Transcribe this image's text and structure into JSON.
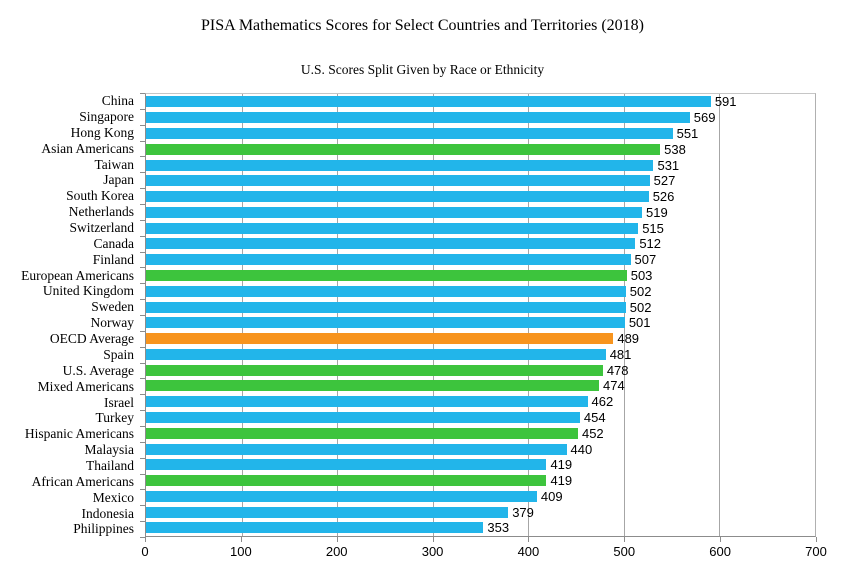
{
  "title": "PISA Mathematics Scores for Select Countries and Territories (2018)",
  "subtitle": "U.S. Scores Split Given by Race or Ethnicity",
  "chart_data": {
    "type": "bar",
    "orientation": "horizontal",
    "title": "PISA Mathematics Scores for Select Countries and Territories (2018)",
    "subtitle": "U.S. Scores Split Given by Race or Ethnicity",
    "xlabel": "",
    "ylabel": "",
    "xlim": [
      0,
      700
    ],
    "x_ticks": [
      0,
      100,
      200,
      300,
      400,
      500,
      600,
      700
    ],
    "grid": true,
    "value_labels": true,
    "colors": {
      "country": "#22b5ea",
      "us_group": "#3dc43d",
      "oecd": "#f7941e"
    },
    "bars": [
      {
        "label": "China",
        "value": 591,
        "group": "country"
      },
      {
        "label": "Singapore",
        "value": 569,
        "group": "country"
      },
      {
        "label": "Hong Kong",
        "value": 551,
        "group": "country"
      },
      {
        "label": "Asian Americans",
        "value": 538,
        "group": "us_group"
      },
      {
        "label": "Taiwan",
        "value": 531,
        "group": "country"
      },
      {
        "label": "Japan",
        "value": 527,
        "group": "country"
      },
      {
        "label": "South Korea",
        "value": 526,
        "group": "country"
      },
      {
        "label": "Netherlands",
        "value": 519,
        "group": "country"
      },
      {
        "label": "Switzerland",
        "value": 515,
        "group": "country"
      },
      {
        "label": "Canada",
        "value": 512,
        "group": "country"
      },
      {
        "label": "Finland",
        "value": 507,
        "group": "country"
      },
      {
        "label": "European Americans",
        "value": 503,
        "group": "us_group"
      },
      {
        "label": "United Kingdom",
        "value": 502,
        "group": "country"
      },
      {
        "label": "Sweden",
        "value": 502,
        "group": "country"
      },
      {
        "label": "Norway",
        "value": 501,
        "group": "country"
      },
      {
        "label": "OECD Average",
        "value": 489,
        "group": "oecd"
      },
      {
        "label": "Spain",
        "value": 481,
        "group": "country"
      },
      {
        "label": "U.S. Average",
        "value": 478,
        "group": "us_group"
      },
      {
        "label": "Mixed Americans",
        "value": 474,
        "group": "us_group"
      },
      {
        "label": "Israel",
        "value": 462,
        "group": "country"
      },
      {
        "label": "Turkey",
        "value": 454,
        "group": "country"
      },
      {
        "label": "Hispanic Americans",
        "value": 452,
        "group": "us_group"
      },
      {
        "label": "Malaysia",
        "value": 440,
        "group": "country"
      },
      {
        "label": "Thailand",
        "value": 419,
        "group": "country"
      },
      {
        "label": "African Americans",
        "value": 419,
        "group": "us_group"
      },
      {
        "label": "Mexico",
        "value": 409,
        "group": "country"
      },
      {
        "label": "Indonesia",
        "value": 379,
        "group": "country"
      },
      {
        "label": "Philippines",
        "value": 353,
        "group": "country"
      }
    ]
  }
}
